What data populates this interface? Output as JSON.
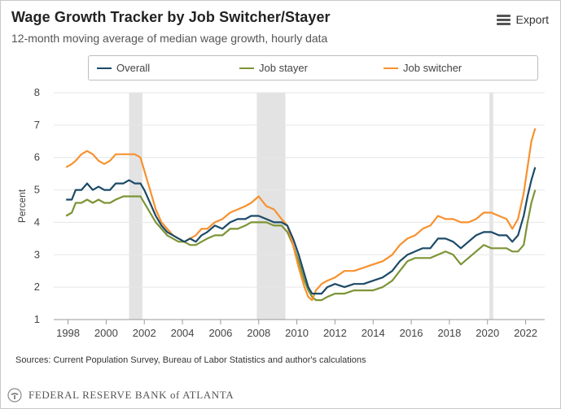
{
  "header": {
    "title": "Wage Growth Tracker by Job Switcher/Stayer",
    "subtitle": "12-month moving average of median wage growth, hourly data"
  },
  "toolbar": {
    "export_label": "Export",
    "export_icon": "hamburger-menu-icon"
  },
  "legend": [
    {
      "key": "overall",
      "label": "Overall",
      "color": "#1c4a68"
    },
    {
      "key": "stayer",
      "label": "Job stayer",
      "color": "#7c9436"
    },
    {
      "key": "switcher",
      "label": "Job switcher",
      "color": "#f7912e"
    }
  ],
  "footer": {
    "sources": "Sources: Current Population Survey, Bureau of Labor Statistics and author's calculations",
    "org_text": "FEDERAL RESERVE BANK of ATLANTA",
    "logo_icon": "eagle-seal-icon"
  },
  "chart_data": {
    "type": "line",
    "title": "Wage Growth Tracker by Job Switcher/Stayer",
    "subtitle": "12-month moving average of median wage growth, hourly data",
    "xlabel": "",
    "ylabel": "Percent",
    "xlim": [
      1997.25,
      2023.0
    ],
    "ylim": [
      1,
      8
    ],
    "xticks": [
      1998,
      2000,
      2002,
      2004,
      2006,
      2008,
      2010,
      2012,
      2014,
      2016,
      2018,
      2020,
      2022
    ],
    "yticks": [
      1,
      2,
      3,
      4,
      5,
      6,
      7,
      8
    ],
    "grid": "horizontal",
    "legend_position": "top",
    "recessions": [
      [
        2001.2,
        2001.9
      ],
      [
        2007.9,
        2009.4
      ],
      [
        2020.1,
        2020.3
      ]
    ],
    "series": [
      {
        "name": "Overall",
        "color": "#1c4a68",
        "points": [
          [
            1997.9,
            4.7
          ],
          [
            1998.2,
            4.7
          ],
          [
            1998.4,
            5.0
          ],
          [
            1998.7,
            5.0
          ],
          [
            1999.0,
            5.2
          ],
          [
            1999.3,
            5.0
          ],
          [
            1999.6,
            5.1
          ],
          [
            1999.9,
            5.0
          ],
          [
            2000.2,
            5.0
          ],
          [
            2000.5,
            5.2
          ],
          [
            2000.9,
            5.2
          ],
          [
            2001.2,
            5.3
          ],
          [
            2001.5,
            5.2
          ],
          [
            2001.8,
            5.2
          ],
          [
            2002.0,
            5.0
          ],
          [
            2002.3,
            4.6
          ],
          [
            2002.6,
            4.2
          ],
          [
            2002.9,
            3.9
          ],
          [
            2003.2,
            3.7
          ],
          [
            2003.5,
            3.6
          ],
          [
            2003.8,
            3.5
          ],
          [
            2004.1,
            3.4
          ],
          [
            2004.4,
            3.5
          ],
          [
            2004.7,
            3.4
          ],
          [
            2005.0,
            3.6
          ],
          [
            2005.3,
            3.7
          ],
          [
            2005.7,
            3.9
          ],
          [
            2006.1,
            3.8
          ],
          [
            2006.5,
            4.0
          ],
          [
            2006.9,
            4.1
          ],
          [
            2007.3,
            4.1
          ],
          [
            2007.6,
            4.2
          ],
          [
            2008.0,
            4.2
          ],
          [
            2008.4,
            4.1
          ],
          [
            2008.8,
            4.0
          ],
          [
            2009.2,
            4.0
          ],
          [
            2009.5,
            3.9
          ],
          [
            2009.8,
            3.5
          ],
          [
            2010.1,
            3.0
          ],
          [
            2010.4,
            2.4
          ],
          [
            2010.6,
            2.0
          ],
          [
            2010.8,
            1.8
          ],
          [
            2011.0,
            1.8
          ],
          [
            2011.3,
            1.8
          ],
          [
            2011.6,
            2.0
          ],
          [
            2012.0,
            2.1
          ],
          [
            2012.5,
            2.0
          ],
          [
            2013.0,
            2.1
          ],
          [
            2013.5,
            2.1
          ],
          [
            2014.0,
            2.2
          ],
          [
            2014.5,
            2.3
          ],
          [
            2015.0,
            2.5
          ],
          [
            2015.4,
            2.8
          ],
          [
            2015.8,
            3.0
          ],
          [
            2016.2,
            3.1
          ],
          [
            2016.6,
            3.2
          ],
          [
            2017.0,
            3.2
          ],
          [
            2017.4,
            3.5
          ],
          [
            2017.8,
            3.5
          ],
          [
            2018.2,
            3.4
          ],
          [
            2018.6,
            3.2
          ],
          [
            2019.0,
            3.4
          ],
          [
            2019.4,
            3.6
          ],
          [
            2019.8,
            3.7
          ],
          [
            2020.2,
            3.7
          ],
          [
            2020.6,
            3.6
          ],
          [
            2021.0,
            3.6
          ],
          [
            2021.3,
            3.4
          ],
          [
            2021.6,
            3.6
          ],
          [
            2021.9,
            4.2
          ],
          [
            2022.1,
            4.8
          ],
          [
            2022.3,
            5.3
          ],
          [
            2022.5,
            5.7
          ]
        ]
      },
      {
        "name": "Job stayer",
        "color": "#7c9436",
        "points": [
          [
            1997.9,
            4.2
          ],
          [
            1998.2,
            4.3
          ],
          [
            1998.4,
            4.6
          ],
          [
            1998.7,
            4.6
          ],
          [
            1999.0,
            4.7
          ],
          [
            1999.3,
            4.6
          ],
          [
            1999.6,
            4.7
          ],
          [
            1999.9,
            4.6
          ],
          [
            2000.2,
            4.6
          ],
          [
            2000.5,
            4.7
          ],
          [
            2000.9,
            4.8
          ],
          [
            2001.2,
            4.8
          ],
          [
            2001.5,
            4.8
          ],
          [
            2001.8,
            4.8
          ],
          [
            2002.0,
            4.6
          ],
          [
            2002.3,
            4.3
          ],
          [
            2002.6,
            4.0
          ],
          [
            2002.9,
            3.8
          ],
          [
            2003.2,
            3.6
          ],
          [
            2003.5,
            3.5
          ],
          [
            2003.8,
            3.4
          ],
          [
            2004.1,
            3.4
          ],
          [
            2004.4,
            3.3
          ],
          [
            2004.7,
            3.3
          ],
          [
            2005.0,
            3.4
          ],
          [
            2005.3,
            3.5
          ],
          [
            2005.7,
            3.6
          ],
          [
            2006.1,
            3.6
          ],
          [
            2006.5,
            3.8
          ],
          [
            2006.9,
            3.8
          ],
          [
            2007.3,
            3.9
          ],
          [
            2007.6,
            4.0
          ],
          [
            2008.0,
            4.0
          ],
          [
            2008.4,
            4.0
          ],
          [
            2008.8,
            3.9
          ],
          [
            2009.2,
            3.9
          ],
          [
            2009.5,
            3.7
          ],
          [
            2009.8,
            3.3
          ],
          [
            2010.1,
            2.8
          ],
          [
            2010.4,
            2.2
          ],
          [
            2010.6,
            1.9
          ],
          [
            2010.8,
            1.7
          ],
          [
            2011.0,
            1.6
          ],
          [
            2011.3,
            1.6
          ],
          [
            2011.6,
            1.7
          ],
          [
            2012.0,
            1.8
          ],
          [
            2012.5,
            1.8
          ],
          [
            2013.0,
            1.9
          ],
          [
            2013.5,
            1.9
          ],
          [
            2014.0,
            1.9
          ],
          [
            2014.5,
            2.0
          ],
          [
            2015.0,
            2.2
          ],
          [
            2015.4,
            2.5
          ],
          [
            2015.8,
            2.8
          ],
          [
            2016.2,
            2.9
          ],
          [
            2016.6,
            2.9
          ],
          [
            2017.0,
            2.9
          ],
          [
            2017.4,
            3.0
          ],
          [
            2017.8,
            3.1
          ],
          [
            2018.2,
            3.0
          ],
          [
            2018.6,
            2.7
          ],
          [
            2019.0,
            2.9
          ],
          [
            2019.4,
            3.1
          ],
          [
            2019.8,
            3.3
          ],
          [
            2020.2,
            3.2
          ],
          [
            2020.6,
            3.2
          ],
          [
            2021.0,
            3.2
          ],
          [
            2021.3,
            3.1
          ],
          [
            2021.6,
            3.1
          ],
          [
            2021.9,
            3.3
          ],
          [
            2022.1,
            4.0
          ],
          [
            2022.3,
            4.6
          ],
          [
            2022.5,
            5.0
          ]
        ]
      },
      {
        "name": "Job switcher",
        "color": "#f7912e",
        "points": [
          [
            1997.9,
            5.7
          ],
          [
            1998.2,
            5.8
          ],
          [
            1998.4,
            5.9
          ],
          [
            1998.7,
            6.1
          ],
          [
            1999.0,
            6.2
          ],
          [
            1999.3,
            6.1
          ],
          [
            1999.6,
            5.9
          ],
          [
            1999.9,
            5.8
          ],
          [
            2000.2,
            5.9
          ],
          [
            2000.5,
            6.1
          ],
          [
            2000.9,
            6.1
          ],
          [
            2001.2,
            6.1
          ],
          [
            2001.5,
            6.1
          ],
          [
            2001.8,
            6.0
          ],
          [
            2002.0,
            5.6
          ],
          [
            2002.3,
            5.0
          ],
          [
            2002.6,
            4.4
          ],
          [
            2002.9,
            4.0
          ],
          [
            2003.2,
            3.8
          ],
          [
            2003.5,
            3.6
          ],
          [
            2003.8,
            3.5
          ],
          [
            2004.1,
            3.4
          ],
          [
            2004.4,
            3.5
          ],
          [
            2004.7,
            3.6
          ],
          [
            2005.0,
            3.8
          ],
          [
            2005.3,
            3.8
          ],
          [
            2005.7,
            4.0
          ],
          [
            2006.1,
            4.1
          ],
          [
            2006.5,
            4.3
          ],
          [
            2006.9,
            4.4
          ],
          [
            2007.3,
            4.5
          ],
          [
            2007.6,
            4.6
          ],
          [
            2008.0,
            4.8
          ],
          [
            2008.4,
            4.5
          ],
          [
            2008.8,
            4.4
          ],
          [
            2009.2,
            4.1
          ],
          [
            2009.5,
            3.9
          ],
          [
            2009.8,
            3.3
          ],
          [
            2010.1,
            2.6
          ],
          [
            2010.4,
            2.0
          ],
          [
            2010.6,
            1.7
          ],
          [
            2010.8,
            1.6
          ],
          [
            2011.0,
            1.9
          ],
          [
            2011.3,
            2.1
          ],
          [
            2011.6,
            2.2
          ],
          [
            2012.0,
            2.3
          ],
          [
            2012.5,
            2.5
          ],
          [
            2013.0,
            2.5
          ],
          [
            2013.5,
            2.6
          ],
          [
            2014.0,
            2.7
          ],
          [
            2014.5,
            2.8
          ],
          [
            2015.0,
            3.0
          ],
          [
            2015.4,
            3.3
          ],
          [
            2015.8,
            3.5
          ],
          [
            2016.2,
            3.6
          ],
          [
            2016.6,
            3.8
          ],
          [
            2017.0,
            3.9
          ],
          [
            2017.4,
            4.2
          ],
          [
            2017.8,
            4.1
          ],
          [
            2018.2,
            4.1
          ],
          [
            2018.6,
            4.0
          ],
          [
            2019.0,
            4.0
          ],
          [
            2019.4,
            4.1
          ],
          [
            2019.8,
            4.3
          ],
          [
            2020.2,
            4.3
          ],
          [
            2020.6,
            4.2
          ],
          [
            2021.0,
            4.1
          ],
          [
            2021.3,
            3.8
          ],
          [
            2021.6,
            4.1
          ],
          [
            2021.9,
            4.9
          ],
          [
            2022.1,
            5.7
          ],
          [
            2022.3,
            6.5
          ],
          [
            2022.5,
            6.9
          ]
        ]
      }
    ]
  }
}
